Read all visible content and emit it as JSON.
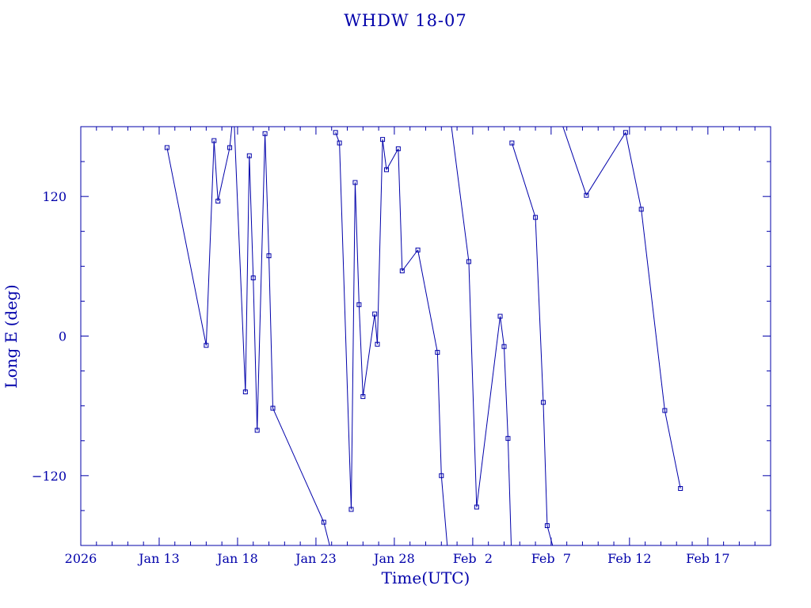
{
  "chart_data": {
    "type": "line",
    "title": "WHDW 18-07",
    "xlabel": "Time(UTC)",
    "ylabel": "Long E (deg)",
    "x_tick_labels": [
      {
        "x": "2026-01-08",
        "label": "2026"
      },
      {
        "x": "2026-01-13",
        "label": "Jan 13"
      },
      {
        "x": "2026-01-18",
        "label": "Jan 18"
      },
      {
        "x": "2026-01-23",
        "label": "Jan 23"
      },
      {
        "x": "2026-01-28",
        "label": "Jan 28"
      },
      {
        "x": "2026-02-02",
        "label": "Feb  2"
      },
      {
        "x": "2026-02-07",
        "label": "Feb  7"
      },
      {
        "x": "2026-02-12",
        "label": "Feb 12"
      },
      {
        "x": "2026-02-17",
        "label": "Feb 17"
      }
    ],
    "xlim": [
      "2026-01-08T00:00",
      "2026-02-21T00:00"
    ],
    "ylim": [
      -180,
      180
    ],
    "y_ticks": [
      -120,
      0,
      120
    ],
    "colors": {
      "axis": "#0000aa",
      "line": "#0000aa"
    },
    "series": [
      {
        "points": [
          {
            "x": "2026-01-13T12:00",
            "y": 162
          },
          {
            "x": "2026-01-16T00:00",
            "y": -8
          },
          {
            "x": "2026-01-16T12:00",
            "y": 168
          },
          {
            "x": "2026-01-16T18:00",
            "y": 116
          },
          {
            "x": "2026-01-17T12:00",
            "y": 162
          },
          {
            "x": "2026-01-17T18:00",
            "y": 195
          },
          {
            "x": "2026-01-18T12:00",
            "y": -48
          },
          {
            "x": "2026-01-18T18:00",
            "y": 155
          },
          {
            "x": "2026-01-19T00:00",
            "y": 50
          },
          {
            "x": "2026-01-19T06:00",
            "y": -81
          },
          {
            "x": "2026-01-19T18:00",
            "y": 174
          },
          {
            "x": "2026-01-20T00:00",
            "y": 69
          },
          {
            "x": "2026-01-20T06:00",
            "y": -62
          },
          {
            "x": "2026-01-23T12:00",
            "y": -160
          },
          {
            "x": "2026-01-24T06:00",
            "y": -200
          },
          {
            "x": "2026-01-24T06:00",
            "y": 175
          },
          {
            "x": "2026-01-24T12:00",
            "y": 166
          },
          {
            "x": "2026-01-25T06:00",
            "y": -149
          },
          {
            "x": "2026-01-25T12:00",
            "y": 132
          },
          {
            "x": "2026-01-25T18:00",
            "y": 27
          },
          {
            "x": "2026-01-26T00:00",
            "y": -52
          },
          {
            "x": "2026-01-26T18:00",
            "y": 19
          },
          {
            "x": "2026-01-26T22:00",
            "y": -7
          },
          {
            "x": "2026-01-27T06:00",
            "y": 169
          },
          {
            "x": "2026-01-27T12:00",
            "y": 143
          },
          {
            "x": "2026-01-28T06:00",
            "y": 161
          },
          {
            "x": "2026-01-28T12:00",
            "y": 56
          },
          {
            "x": "2026-01-29T12:00",
            "y": 74
          },
          {
            "x": "2026-01-30T18:00",
            "y": -14
          },
          {
            "x": "2026-01-31T00:00",
            "y": -120
          },
          {
            "x": "2026-01-31T12:00",
            "y": -200
          },
          {
            "x": "2026-01-31T12:00",
            "y": 195
          },
          {
            "x": "2026-02-01T18:00",
            "y": 64
          },
          {
            "x": "2026-02-02T06:00",
            "y": -147
          },
          {
            "x": "2026-02-03T18:00",
            "y": 17
          },
          {
            "x": "2026-02-04T00:00",
            "y": -9
          },
          {
            "x": "2026-02-04T06:00",
            "y": -88
          },
          {
            "x": "2026-02-04T12:00",
            "y": -200
          },
          {
            "x": "2026-02-04T12:00",
            "y": 166
          },
          {
            "x": "2026-02-06T00:00",
            "y": 102
          },
          {
            "x": "2026-02-06T12:00",
            "y": -57
          },
          {
            "x": "2026-02-06T18:00",
            "y": -163
          },
          {
            "x": "2026-02-07T12:00",
            "y": -200
          },
          {
            "x": "2026-02-07T12:00",
            "y": 190
          },
          {
            "x": "2026-02-09T06:00",
            "y": 121
          },
          {
            "x": "2026-02-11T18:00",
            "y": 175
          },
          {
            "x": "2026-02-12T18:00",
            "y": 109
          },
          {
            "x": "2026-02-14T06:00",
            "y": -64
          },
          {
            "x": "2026-02-15T06:00",
            "y": -131
          }
        ]
      }
    ]
  }
}
